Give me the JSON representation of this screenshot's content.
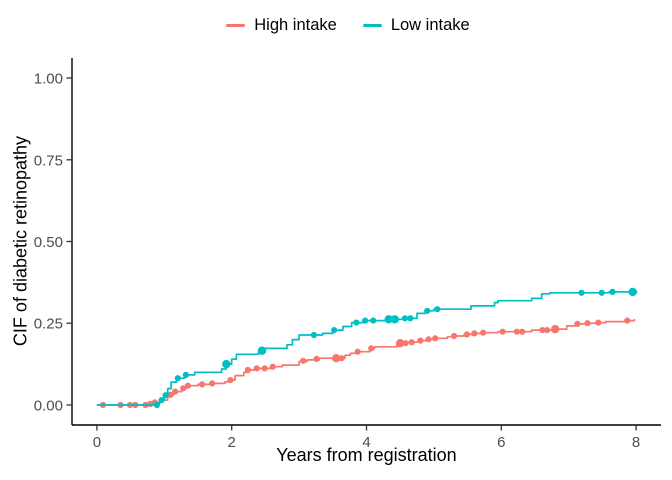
{
  "figure": {
    "background": "#ffffff",
    "accent_high": "#F8766D",
    "accent_low": "#00BFC4"
  },
  "chart_data": {
    "type": "line",
    "variant": "cumulative-incidence-step-curves",
    "title": "",
    "xlabel": "Years from registration",
    "ylabel": "CIF of diabetic retinopathy",
    "x_tick_labels": [
      "0",
      "2",
      "4",
      "6",
      "8"
    ],
    "x_tick_values": [
      0,
      2,
      4,
      6,
      8
    ],
    "y_tick_labels": [
      "0.00",
      "0.25",
      "0.50",
      "0.75",
      "1.00"
    ],
    "y_tick_values": [
      0,
      0.25,
      0.5,
      0.75,
      1
    ],
    "xlim": [
      -0.37,
      8.37
    ],
    "ylim": [
      -0.0612,
      1.0612
    ],
    "grid": false,
    "legend_position": "top",
    "series": [
      {
        "name": "High intake",
        "color": "#F8766D",
        "line_end": 7.99,
        "steps": [
          [
            0,
            0
          ],
          [
            0.78,
            0.003
          ],
          [
            0.85,
            0.008
          ],
          [
            0.95,
            0.015
          ],
          [
            1.05,
            0.031
          ],
          [
            1.14,
            0.041
          ],
          [
            1.26,
            0.051
          ],
          [
            1.33,
            0.059
          ],
          [
            1.5,
            0.063
          ],
          [
            1.68,
            0.066
          ],
          [
            1.9,
            0.071
          ],
          [
            1.97,
            0.076
          ],
          [
            2.05,
            0.09
          ],
          [
            2.18,
            0.1
          ],
          [
            2.25,
            0.107
          ],
          [
            2.37,
            0.112
          ],
          [
            2.6,
            0.117
          ],
          [
            2.75,
            0.122
          ],
          [
            3.0,
            0.133
          ],
          [
            3.12,
            0.138
          ],
          [
            3.3,
            0.143
          ],
          [
            3.68,
            0.152
          ],
          [
            3.76,
            0.158
          ],
          [
            3.85,
            0.163
          ],
          [
            4.05,
            0.173
          ],
          [
            4.12,
            0.178
          ],
          [
            4.45,
            0.189
          ],
          [
            4.6,
            0.192
          ],
          [
            4.78,
            0.197
          ],
          [
            4.9,
            0.201
          ],
          [
            5.0,
            0.204
          ],
          [
            5.2,
            0.209
          ],
          [
            5.28,
            0.211
          ],
          [
            5.45,
            0.216
          ],
          [
            5.58,
            0.219
          ],
          [
            5.72,
            0.221
          ],
          [
            5.95,
            0.224
          ],
          [
            6.45,
            0.229
          ],
          [
            6.78,
            0.232
          ],
          [
            6.97,
            0.242
          ],
          [
            7.1,
            0.248
          ],
          [
            7.25,
            0.25
          ],
          [
            7.4,
            0.252
          ],
          [
            7.55,
            0.255
          ],
          [
            7.9,
            0.258
          ],
          [
            7.97,
            0.26
          ]
        ],
        "markers": [
          [
            0.09,
            0
          ],
          [
            0.35,
            0
          ],
          [
            0.49,
            0
          ],
          [
            0.57,
            0
          ],
          [
            0.72,
            0
          ],
          [
            0.79,
            0.003
          ],
          [
            0.86,
            0.008
          ],
          [
            1.09,
            0.031
          ],
          [
            1.16,
            0.041
          ],
          [
            1.28,
            0.051
          ],
          [
            1.35,
            0.059
          ],
          [
            1.56,
            0.063
          ],
          [
            1.71,
            0.066
          ],
          [
            1.98,
            0.076
          ],
          [
            2.24,
            0.107
          ],
          [
            2.37,
            0.112
          ],
          [
            2.49,
            0.112
          ],
          [
            2.61,
            0.117
          ],
          [
            3.06,
            0.135
          ],
          [
            3.26,
            0.141
          ],
          [
            3.55,
            0.143,
            1
          ],
          [
            3.63,
            0.143
          ],
          [
            3.87,
            0.163
          ],
          [
            4.07,
            0.173
          ],
          [
            4.5,
            0.189,
            1
          ],
          [
            4.58,
            0.189
          ],
          [
            4.67,
            0.192
          ],
          [
            4.8,
            0.197
          ],
          [
            4.92,
            0.201
          ],
          [
            5.02,
            0.204
          ],
          [
            5.3,
            0.211
          ],
          [
            5.49,
            0.216
          ],
          [
            5.6,
            0.219
          ],
          [
            5.73,
            0.221
          ],
          [
            6.02,
            0.224
          ],
          [
            6.23,
            0.224
          ],
          [
            6.31,
            0.224
          ],
          [
            6.61,
            0.229
          ],
          [
            6.68,
            0.229
          ],
          [
            6.8,
            0.232,
            1
          ],
          [
            7.13,
            0.248
          ],
          [
            7.28,
            0.25
          ],
          [
            7.44,
            0.252
          ],
          [
            7.87,
            0.258
          ]
        ]
      },
      {
        "name": "Low intake",
        "color": "#00BFC4",
        "line_end": 8.02,
        "steps": [
          [
            0,
            0
          ],
          [
            0.85,
            0.005
          ],
          [
            0.93,
            0.015
          ],
          [
            1.0,
            0.03
          ],
          [
            1.05,
            0.05
          ],
          [
            1.1,
            0.07
          ],
          [
            1.18,
            0.082
          ],
          [
            1.3,
            0.092
          ],
          [
            1.45,
            0.1
          ],
          [
            1.85,
            0.11
          ],
          [
            1.92,
            0.125
          ],
          [
            2.0,
            0.14
          ],
          [
            2.07,
            0.155
          ],
          [
            2.4,
            0.166
          ],
          [
            2.5,
            0.173
          ],
          [
            2.82,
            0.184
          ],
          [
            2.9,
            0.2
          ],
          [
            3.0,
            0.214
          ],
          [
            3.35,
            0.219
          ],
          [
            3.5,
            0.229
          ],
          [
            3.65,
            0.24
          ],
          [
            3.78,
            0.252
          ],
          [
            3.95,
            0.258
          ],
          [
            4.3,
            0.262
          ],
          [
            4.55,
            0.265
          ],
          [
            4.75,
            0.28
          ],
          [
            4.87,
            0.288
          ],
          [
            5.0,
            0.293
          ],
          [
            5.55,
            0.303
          ],
          [
            5.9,
            0.313
          ],
          [
            5.95,
            0.319
          ],
          [
            6.45,
            0.326
          ],
          [
            6.6,
            0.34
          ],
          [
            6.72,
            0.343
          ],
          [
            7.6,
            0.346
          ]
        ],
        "markers": [
          [
            0.89,
            0
          ],
          [
            0.96,
            0.015
          ],
          [
            1.02,
            0.03
          ],
          [
            1.2,
            0.082
          ],
          [
            1.32,
            0.092
          ],
          [
            1.92,
            0.125,
            1
          ],
          [
            2.45,
            0.166,
            1
          ],
          [
            3.22,
            0.214
          ],
          [
            3.52,
            0.229
          ],
          [
            3.85,
            0.252
          ],
          [
            3.98,
            0.258
          ],
          [
            4.1,
            0.258
          ],
          [
            4.33,
            0.262,
            1
          ],
          [
            4.42,
            0.262,
            1
          ],
          [
            4.57,
            0.265
          ],
          [
            4.65,
            0.265
          ],
          [
            4.9,
            0.288
          ],
          [
            5.05,
            0.293
          ],
          [
            7.19,
            0.343
          ],
          [
            7.49,
            0.343
          ],
          [
            7.65,
            0.346
          ],
          [
            7.95,
            0.346,
            1
          ]
        ]
      }
    ]
  }
}
